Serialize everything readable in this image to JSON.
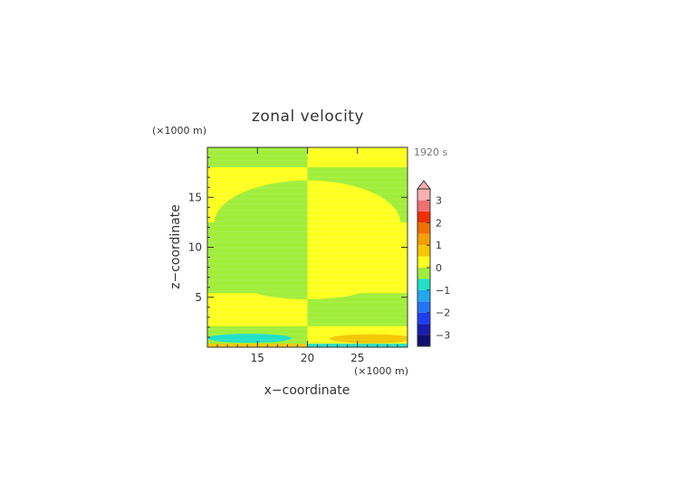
{
  "chart_data": {
    "type": "heatmap",
    "title": "zonal velocity",
    "time_label": "1920 s",
    "x_unit": "(×1000 m)",
    "y_unit": "(×1000 m)",
    "xlabel": "x−coordinate",
    "ylabel": "z−coordinate",
    "xlim": [
      10,
      30
    ],
    "ylim": [
      0,
      20
    ],
    "x_ticks": [
      15,
      20,
      25
    ],
    "y_ticks": [
      5,
      10,
      15
    ],
    "colorbar": {
      "ticks": [
        3,
        2,
        1,
        0,
        -1,
        -2,
        -3
      ],
      "tick_labels": [
        "3",
        "2",
        "1",
        "0",
        "−1",
        "−2",
        "−3"
      ],
      "levels": [
        {
          "from": -3.5,
          "to": -3.0,
          "color": "#101070"
        },
        {
          "from": -3.0,
          "to": -2.5,
          "color": "#1a1ab0"
        },
        {
          "from": -2.5,
          "to": -2.0,
          "color": "#1c3ef0"
        },
        {
          "from": -2.0,
          "to": -1.5,
          "color": "#2474f5"
        },
        {
          "from": -1.5,
          "to": -1.0,
          "color": "#20a8f0"
        },
        {
          "from": -1.0,
          "to": -0.5,
          "color": "#20e0c8"
        },
        {
          "from": -0.5,
          "to": 0.0,
          "color": "#a0ee3a"
        },
        {
          "from": 0.0,
          "to": 0.5,
          "color": "#ffff20"
        },
        {
          "from": 0.5,
          "to": 1.0,
          "color": "#f5c800"
        },
        {
          "from": 1.0,
          "to": 1.5,
          "color": "#f5a000"
        },
        {
          "from": 1.5,
          "to": 2.0,
          "color": "#f07000"
        },
        {
          "from": 2.0,
          "to": 2.5,
          "color": "#f03000"
        },
        {
          "from": 2.5,
          "to": 3.0,
          "color": "#f07070"
        },
        {
          "from": 3.0,
          "to": 3.5,
          "color": "#f8b0b0"
        }
      ]
    },
    "regions": [
      {
        "shape": "rect",
        "x": [
          10,
          20
        ],
        "y": [
          0,
          20
        ],
        "level": "-0.5 to 0"
      },
      {
        "shape": "rect",
        "x": [
          20,
          30
        ],
        "y": [
          0,
          20
        ],
        "level": "0 to 0.5"
      },
      {
        "shape": "rect",
        "x": [
          10,
          20
        ],
        "y": [
          12.5,
          18
        ],
        "level": "0 to 0.5"
      },
      {
        "shape": "rect",
        "x": [
          20,
          30
        ],
        "y": [
          12.5,
          18
        ],
        "level": "-0.5 to 0"
      },
      {
        "shape": "ellipse",
        "cx": 20,
        "cy": 12.4,
        "rx": 9.3,
        "ry": 4.3,
        "level": "-0.5 to 0",
        "clip_x": [
          10,
          20
        ]
      },
      {
        "shape": "ellipse",
        "cx": 20,
        "cy": 12.4,
        "rx": 9.3,
        "ry": 4.3,
        "level": "0 to 0.5",
        "clip_x": [
          20,
          30
        ]
      },
      {
        "shape": "rect",
        "x": [
          10,
          20
        ],
        "y": [
          2.1,
          5.4
        ],
        "level": "0 to 0.5"
      },
      {
        "shape": "rect",
        "x": [
          20,
          30
        ],
        "y": [
          2.1,
          5.4
        ],
        "level": "-0.5 to 0"
      },
      {
        "shape": "ellipse",
        "cx": 20,
        "cy": 5.4,
        "rx": 9.5,
        "ry": 3.3,
        "level": "0 to 0.5",
        "clip_x": [
          10,
          20
        ],
        "clip_y": [
          0,
          5.4
        ]
      },
      {
        "shape": "ellipse",
        "cx": 20,
        "cy": 5.4,
        "rx": 9.5,
        "ry": 3.3,
        "level": "-0.5 to 0",
        "clip_x": [
          20,
          30
        ],
        "clip_y": [
          0,
          5.4
        ]
      },
      {
        "shape": "ellipse",
        "cx": 20,
        "cy": 5.9,
        "rx": 5.8,
        "ry": 1.1,
        "level": "-0.5 to 0",
        "clip_x": [
          10,
          20
        ]
      },
      {
        "shape": "ellipse",
        "cx": 20,
        "cy": 5.9,
        "rx": 5.8,
        "ry": 1.1,
        "level": "0 to 0.5",
        "clip_x": [
          20,
          30
        ]
      },
      {
        "shape": "ellipse",
        "cx": 14.2,
        "cy": 0.9,
        "rx": 4.2,
        "ry": 0.45,
        "level": "-1 to -0.5"
      },
      {
        "shape": "ellipse",
        "cx": 26.4,
        "cy": 0.85,
        "rx": 4.2,
        "ry": 0.45,
        "level": "0.5 to 1"
      },
      {
        "shape": "rect",
        "x": [
          10,
          20
        ],
        "y": [
          0,
          0.35
        ],
        "level": "0.5 to 1"
      },
      {
        "shape": "rect",
        "x": [
          20,
          30
        ],
        "y": [
          0,
          0.35
        ],
        "level": "-1 to -0.5"
      }
    ]
  }
}
